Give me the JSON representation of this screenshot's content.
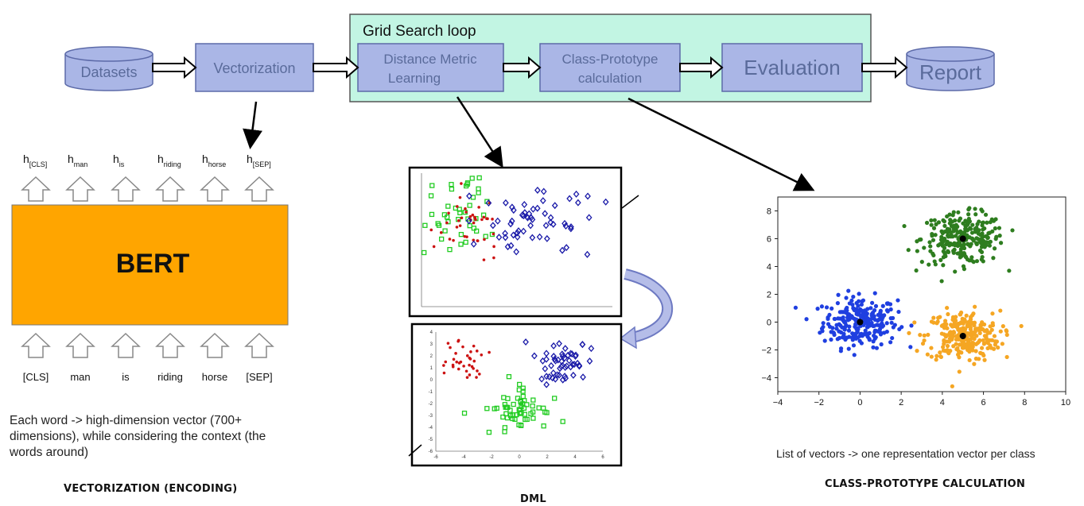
{
  "pipeline": {
    "datasets": "Datasets",
    "vectorization": "Vectorization",
    "loop_title": "Grid Search loop",
    "dml_line1": "Distance Metric",
    "dml_line2": "Learning",
    "proto_line1": "Class-Prototype",
    "proto_line2": "calculation",
    "evaluation": "Evaluation",
    "report": "Report"
  },
  "bert": {
    "label": "BERT",
    "outputs": [
      {
        "base": "h",
        "sub": "[CLS]"
      },
      {
        "base": "h",
        "sub": "man"
      },
      {
        "base": "h",
        "sub": "is"
      },
      {
        "base": "h",
        "sub": "riding"
      },
      {
        "base": "h",
        "sub": "horse"
      },
      {
        "base": "h",
        "sub": "[SEP]"
      }
    ],
    "inputs": [
      "[CLS]",
      "man",
      "is",
      "riding",
      "horse",
      "[SEP]"
    ],
    "description": "Each word -> high-dimension vector (700+ dimensions), while considering the context (the words around)",
    "section_title": "VECTORIZATION (ENCODING)"
  },
  "dml": {
    "section_title": "DML"
  },
  "prototype": {
    "description": "List of vectors -> one representation vector per class",
    "section_title": "CLASS-PROTOTYPE CALCULATION"
  },
  "colors": {
    "box_fill": "#aab6e6",
    "box_stroke": "#5c6aa8",
    "loop_fill": "#c2f5e3",
    "bert_fill": "#ffa500",
    "green": "#2e7d1f",
    "blue": "#1f3fe0",
    "orange": "#f5a623"
  },
  "chart_data": [
    {
      "type": "scatter",
      "title": "",
      "xlim": [
        -4,
        10
      ],
      "ylim": [
        -5,
        9
      ],
      "xticks": [
        -4,
        -2,
        0,
        2,
        4,
        6,
        8,
        10
      ],
      "yticks": [
        -4,
        -2,
        0,
        2,
        4,
        6,
        8
      ],
      "series": [
        {
          "color": "#1f3fe0",
          "center": [
            0,
            0
          ],
          "spread": [
            0.9,
            0.9
          ],
          "count": 260
        },
        {
          "color": "#2e7d1f",
          "center": [
            5,
            6
          ],
          "spread": [
            1.0,
            0.9
          ],
          "count": 260
        },
        {
          "color": "#f5a623",
          "center": [
            5,
            -1
          ],
          "spread": [
            0.9,
            0.9
          ],
          "count": 260
        }
      ],
      "prototypes": [
        [
          0,
          0
        ],
        [
          5,
          6
        ],
        [
          5,
          -1
        ]
      ]
    },
    {
      "type": "scatter",
      "title": "",
      "series": [
        {
          "color": "#22cc22",
          "marker": "square"
        },
        {
          "color": "#cc1111",
          "marker": "dot"
        },
        {
          "color": "#1a1aa8",
          "marker": "diamond"
        }
      ]
    },
    {
      "type": "scatter",
      "title": "",
      "xticks": [
        -6,
        -4,
        -2,
        0,
        2,
        4,
        6
      ],
      "yticks": [
        -6,
        -5,
        -4,
        -3,
        -2,
        -1,
        0,
        1,
        2,
        3,
        4
      ],
      "series": [
        {
          "color": "#cc1111",
          "marker": "dot"
        },
        {
          "color": "#22cc22",
          "marker": "square"
        },
        {
          "color": "#1a1aa8",
          "marker": "diamond"
        }
      ]
    }
  ]
}
